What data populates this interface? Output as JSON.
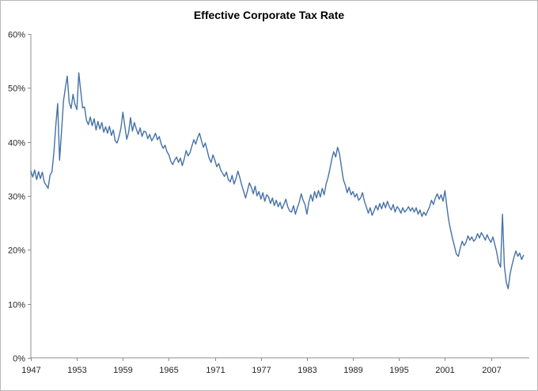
{
  "chart_data": {
    "type": "line",
    "title": "Effective Corporate Tax Rate",
    "xlabel": "",
    "ylabel": "",
    "series_name": "Effective Corporate Tax Rate",
    "x_start_year": 1947,
    "points_per_year": 4,
    "xlim": [
      1947,
      2012
    ],
    "ylim": [
      0,
      60
    ],
    "x_ticks": [
      1947,
      1953,
      1959,
      1965,
      1971,
      1977,
      1983,
      1989,
      1995,
      2001,
      2007
    ],
    "y_ticks": [
      0,
      10,
      20,
      30,
      40,
      50,
      60
    ],
    "y_tick_suffix": "%",
    "grid": false,
    "legend_position": "none",
    "line_color": "#4572A7",
    "axis_color": "#8c8c8c",
    "text_color": "#262626",
    "values": [
      34.6,
      33.5,
      34.8,
      33.0,
      34.5,
      33.2,
      34.4,
      32.5,
      32.0,
      31.4,
      33.8,
      34.5,
      38.0,
      43.0,
      47.1,
      36.6,
      42.0,
      47.5,
      50.0,
      52.2,
      47.3,
      46.2,
      48.8,
      47.0,
      46.0,
      52.8,
      49.5,
      46.3,
      46.5,
      44.0,
      43.2,
      44.6,
      43.0,
      44.3,
      42.2,
      43.8,
      42.4,
      43.6,
      41.8,
      42.8,
      41.6,
      42.9,
      41.2,
      42.2,
      40.2,
      39.8,
      41.0,
      42.6,
      45.5,
      43.0,
      40.5,
      41.8,
      44.5,
      42.0,
      43.6,
      42.4,
      41.4,
      42.6,
      41.0,
      42.0,
      41.8,
      40.6,
      41.4,
      40.2,
      40.8,
      41.6,
      40.4,
      41.0,
      39.6,
      38.8,
      39.4,
      38.2,
      37.6,
      36.4,
      35.8,
      36.6,
      37.2,
      36.2,
      37.0,
      35.6,
      36.8,
      38.4,
      37.4,
      38.0,
      39.2,
      40.4,
      39.6,
      40.8,
      41.6,
      40.2,
      39.0,
      39.8,
      38.4,
      37.0,
      36.2,
      37.6,
      36.6,
      35.4,
      36.0,
      34.8,
      34.2,
      33.6,
      34.4,
      33.0,
      32.6,
      33.8,
      32.2,
      33.2,
      34.6,
      33.4,
      32.0,
      30.8,
      29.6,
      31.0,
      32.4,
      31.6,
      30.4,
      31.8,
      30.0,
      30.8,
      29.4,
      30.6,
      29.0,
      30.2,
      29.8,
      28.6,
      29.6,
      28.2,
      29.2,
      28.0,
      28.8,
      27.6,
      28.4,
      29.4,
      28.0,
      27.2,
      27.0,
      28.2,
      26.6,
      27.8,
      28.8,
      30.4,
      29.2,
      28.4,
      26.6,
      28.8,
      30.2,
      29.0,
      30.8,
      29.6,
      31.0,
      29.8,
      31.4,
      30.2,
      32.2,
      33.4,
      35.0,
      36.8,
      38.2,
      37.2,
      39.0,
      37.8,
      35.4,
      33.0,
      32.0,
      30.6,
      31.6,
      30.2,
      30.8,
      29.8,
      30.4,
      29.2,
      29.6,
      30.6,
      29.0,
      28.0,
      26.8,
      27.8,
      26.4,
      27.2,
      28.2,
      27.4,
      28.6,
      27.6,
      28.8,
      27.8,
      29.0,
      28.0,
      27.4,
      28.4,
      27.0,
      28.0,
      27.6,
      26.8,
      27.8,
      27.0,
      27.4,
      28.0,
      27.2,
      27.8,
      27.0,
      27.8,
      26.6,
      27.4,
      26.2,
      27.0,
      26.4,
      27.2,
      28.0,
      29.2,
      28.4,
      29.6,
      30.4,
      29.4,
      30.2,
      29.0,
      31.0,
      28.0,
      25.4,
      23.6,
      22.0,
      20.6,
      19.2,
      18.8,
      20.4,
      21.6,
      20.8,
      21.4,
      22.6,
      21.8,
      22.4,
      21.6,
      22.0,
      23.0,
      22.2,
      23.2,
      22.6,
      21.8,
      22.8,
      22.0,
      21.4,
      22.4,
      21.0,
      19.6,
      17.6,
      16.8,
      26.6,
      17.0,
      14.0,
      12.8,
      15.6,
      17.2,
      18.6,
      19.8,
      18.8,
      19.4,
      18.2,
      19.0
    ]
  }
}
